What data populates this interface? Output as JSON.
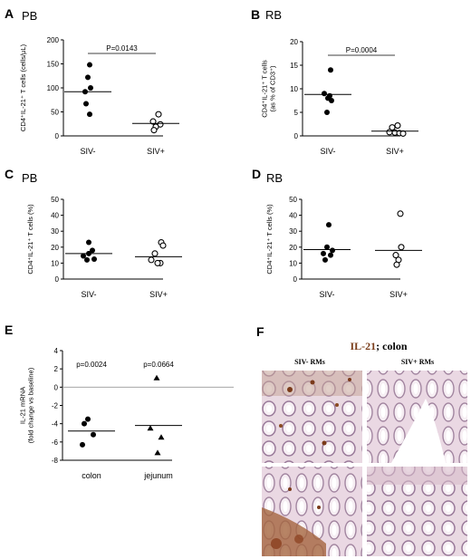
{
  "chart_data": [
    {
      "panel": "A",
      "title": "PB",
      "type": "scatter",
      "ylabel_lines": [
        "CD4⁺IL-21⁺ T cells (cells/μL)"
      ],
      "ylim": [
        0,
        200
      ],
      "yticks": [
        0,
        50,
        100,
        150,
        200
      ],
      "categories": [
        "SIV-",
        "SIV+"
      ],
      "series": [
        {
          "category": "SIV-",
          "marker": "filled-circle",
          "values": [
            148,
            122,
            92,
            100,
            67,
            45
          ],
          "mean": 92
        },
        {
          "category": "SIV+",
          "marker": "open-circle",
          "values": [
            45,
            30,
            24,
            19,
            12
          ],
          "mean": 26
        }
      ],
      "annotation": "P=0.0143"
    },
    {
      "panel": "B",
      "title": "RB",
      "type": "scatter",
      "ylabel_lines": [
        "CD4⁺IL-21⁺ T cells",
        "(as % of CD3⁺)"
      ],
      "ylim": [
        0,
        20
      ],
      "yticks": [
        0,
        5,
        10,
        15,
        20
      ],
      "categories": [
        "SIV-",
        "SIV+"
      ],
      "series": [
        {
          "category": "SIV-",
          "marker": "filled-circle",
          "values": [
            14,
            9,
            8.5,
            8,
            7.5,
            5
          ],
          "mean": 8.8
        },
        {
          "category": "SIV+",
          "marker": "open-circle",
          "values": [
            2.2,
            1.8,
            0.8,
            0.7,
            0.6,
            0.5
          ],
          "mean": 1
        }
      ],
      "annotation": "P=0.0004"
    },
    {
      "panel": "C",
      "title": "PB",
      "type": "scatter",
      "ylabel_lines": [
        "CD4⁺IL-21⁺ T cells (%)"
      ],
      "ylim": [
        0,
        50
      ],
      "yticks": [
        0,
        10,
        20,
        30,
        40,
        50
      ],
      "categories": [
        "SIV-",
        "SIV+"
      ],
      "series": [
        {
          "category": "SIV-",
          "marker": "filled-circle",
          "values": [
            23,
            18,
            16,
            14.5,
            12.5,
            12
          ],
          "mean": 16
        },
        {
          "category": "SIV+",
          "marker": "open-circle",
          "values": [
            23,
            21,
            16,
            12,
            10,
            10
          ],
          "mean": 14
        }
      ],
      "annotation": ""
    },
    {
      "panel": "D",
      "title": "RB",
      "type": "scatter",
      "ylabel_lines": [
        "CD4⁺IL-21⁺ T cells (%)"
      ],
      "ylim": [
        0,
        50
      ],
      "yticks": [
        0,
        10,
        20,
        30,
        40,
        50
      ],
      "categories": [
        "SIV-",
        "SIV+"
      ],
      "series": [
        {
          "category": "SIV-",
          "marker": "filled-circle",
          "values": [
            34,
            20,
            18,
            16,
            15,
            12
          ],
          "mean": 18.5
        },
        {
          "category": "SIV+",
          "marker": "open-circle",
          "values": [
            41,
            20,
            15,
            12,
            9
          ],
          "mean": 18
        }
      ],
      "annotation": ""
    },
    {
      "panel": "E",
      "title": "",
      "type": "scatter",
      "ylabel_lines": [
        "IL-21 mRNA",
        "(fold change vs baseline)"
      ],
      "ylim": [
        -8,
        4
      ],
      "yticks": [
        -8,
        -6,
        -4,
        -2,
        0,
        2,
        4
      ],
      "categories": [
        "colon",
        "jejunum"
      ],
      "zero_line": true,
      "series": [
        {
          "category": "colon",
          "marker": "filled-circle",
          "values": [
            -3.5,
            -4,
            -5.2,
            -6.3
          ],
          "mean": -4.8
        },
        {
          "category": "jejunum",
          "marker": "filled-triangle",
          "values": [
            1,
            -4.5,
            -5.5,
            -7.2
          ],
          "mean": -4.2
        }
      ],
      "category_annotations": [
        "p=0.0024",
        "p=0.0664"
      ]
    }
  ],
  "panel_f": {
    "label": "F",
    "title_main": "IL-21",
    "title_rest": "; colon",
    "columns": [
      "SIV- RMs",
      "SIV+ RMs"
    ]
  }
}
